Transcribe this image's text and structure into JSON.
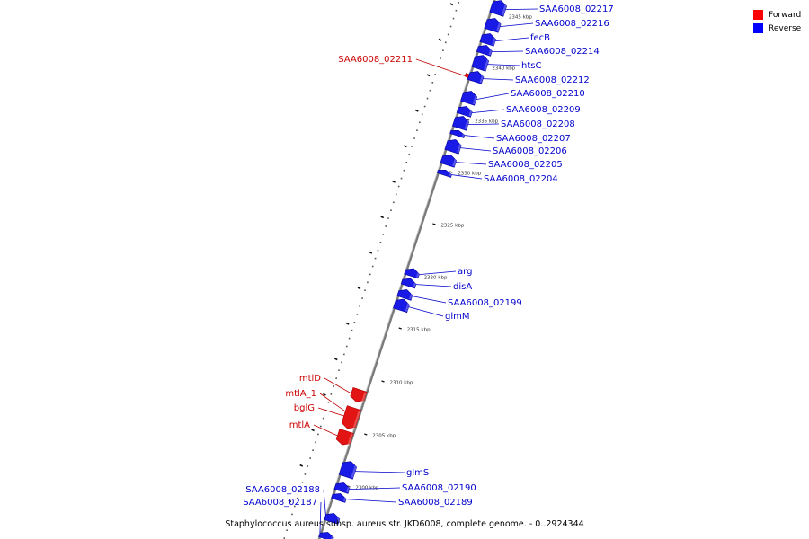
{
  "legend": [
    {
      "label": "Forward",
      "color": "#ff0000"
    },
    {
      "label": "Reverse",
      "color": "#0000ff"
    }
  ],
  "caption": "Staphylococcus aureus subsp. aureus str. JKD6008, complete genome. - 0..2924344",
  "colors": {
    "forward": "#e21414",
    "reverse": "#1a1ae6",
    "backbone": "#7a7a7a"
  },
  "ticks": [
    "2300 kbp",
    "2305 kbp",
    "2310 kbp",
    "2315 kbp",
    "2320 kbp",
    "2325 kbp",
    "2330 kbp",
    "2335 kbp",
    "2340 kbp",
    "2345 kbp"
  ],
  "genes": [
    {
      "name": "SAA6008_02217",
      "strand": "reverse"
    },
    {
      "name": "SAA6008_02216",
      "strand": "reverse"
    },
    {
      "name": "fecB",
      "strand": "reverse"
    },
    {
      "name": "SAA6008_02214",
      "strand": "reverse"
    },
    {
      "name": "htsC",
      "strand": "reverse"
    },
    {
      "name": "SAA6008_02211",
      "strand": "forward"
    },
    {
      "name": "SAA6008_02212",
      "strand": "reverse"
    },
    {
      "name": "SAA6008_02210",
      "strand": "reverse"
    },
    {
      "name": "SAA6008_02209",
      "strand": "reverse"
    },
    {
      "name": "SAA6008_02208",
      "strand": "reverse"
    },
    {
      "name": "SAA6008_02207",
      "strand": "reverse"
    },
    {
      "name": "SAA6008_02206",
      "strand": "reverse"
    },
    {
      "name": "SAA6008_02205",
      "strand": "reverse"
    },
    {
      "name": "SAA6008_02204",
      "strand": "reverse"
    },
    {
      "name": "arg",
      "strand": "reverse"
    },
    {
      "name": "disA",
      "strand": "reverse"
    },
    {
      "name": "SAA6008_02199",
      "strand": "reverse"
    },
    {
      "name": "glmM",
      "strand": "reverse"
    },
    {
      "name": "mtlD",
      "strand": "forward"
    },
    {
      "name": "mtlA_1",
      "strand": "forward"
    },
    {
      "name": "bglG",
      "strand": "forward"
    },
    {
      "name": "mtlA",
      "strand": "forward"
    },
    {
      "name": "glmS",
      "strand": "reverse"
    },
    {
      "name": "SAA6008_02190",
      "strand": "reverse"
    },
    {
      "name": "SAA6008_02189",
      "strand": "reverse"
    },
    {
      "name": "SAA6008_02188",
      "strand": "reverse"
    },
    {
      "name": "SAA6008_02187",
      "strand": "reverse"
    }
  ]
}
